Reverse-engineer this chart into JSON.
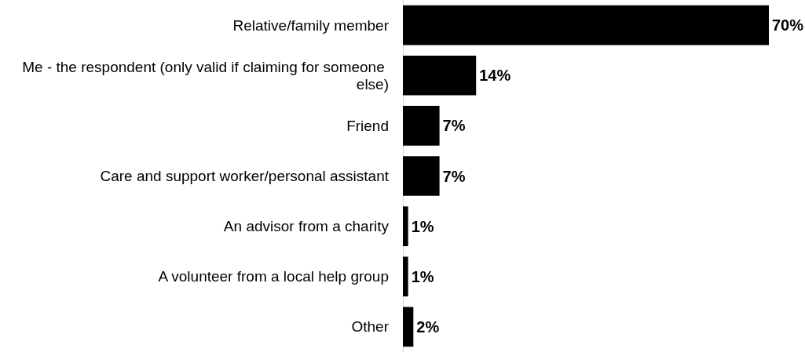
{
  "chart_data": {
    "type": "bar",
    "orientation": "horizontal",
    "categories": [
      "Relative/family member",
      "Me - the respondent (only valid if claiming for someone else)",
      "Friend",
      "Care and support worker/personal assistant",
      "An advisor from a charity",
      "A volunteer from a local help group",
      "Other"
    ],
    "values": [
      70,
      14,
      7,
      7,
      1,
      1,
      2
    ],
    "value_labels": [
      "70%",
      "14%",
      "7%",
      "7%",
      "1%",
      "1%",
      "2%"
    ],
    "color": "#000000"
  }
}
